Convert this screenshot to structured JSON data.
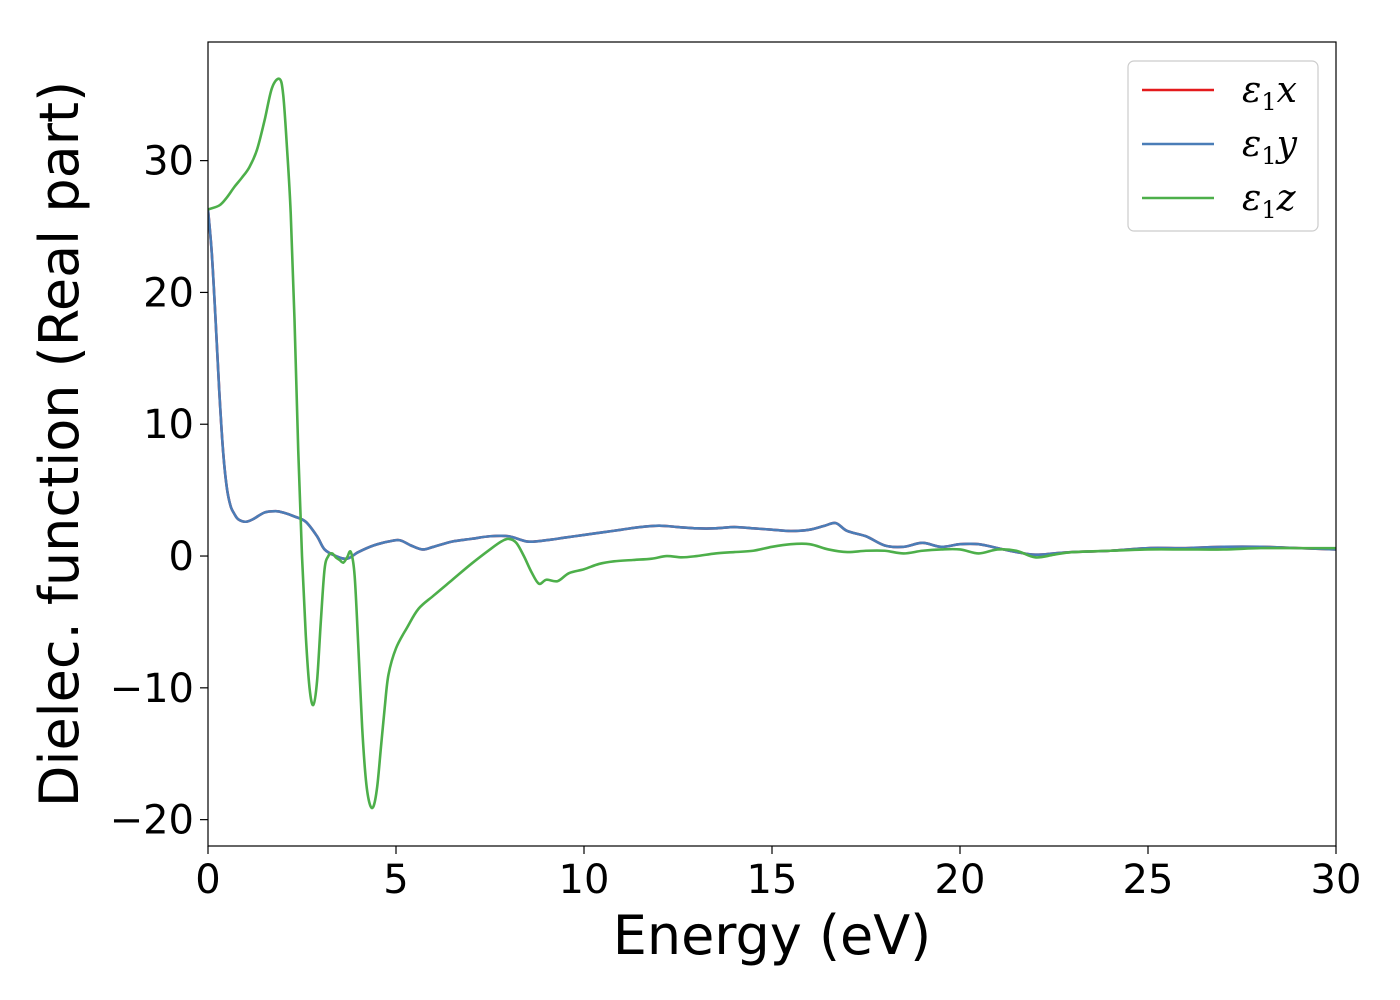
{
  "chart_data": {
    "type": "line",
    "title": "",
    "xlabel": "Energy (eV)",
    "ylabel": "Dielec. function (Real part)",
    "xlim": [
      0,
      30
    ],
    "ylim": [
      -22,
      39
    ],
    "x_ticks": [
      0,
      5,
      10,
      15,
      20,
      25,
      30
    ],
    "x_tick_labels": [
      "0",
      "5",
      "10",
      "15",
      "20",
      "25",
      "30"
    ],
    "y_ticks": [
      -20,
      -10,
      0,
      10,
      20,
      30
    ],
    "y_tick_labels": [
      "−20",
      "−10",
      "0",
      "10",
      "20",
      "30"
    ],
    "grid": false,
    "legend_position": "top-right",
    "series": [
      {
        "name": "ε₁x",
        "legend_symbol": "ε",
        "legend_sub": "1",
        "legend_var": "x",
        "color": "#e41a1c",
        "x": [
          0,
          0.1,
          0.2,
          0.3,
          0.4,
          0.5,
          0.6,
          0.7,
          0.8,
          1.0,
          1.2,
          1.5,
          1.8,
          2.0,
          2.3,
          2.6,
          2.9,
          3.1,
          3.4,
          3.7,
          4.0,
          4.4,
          4.8,
          5.1,
          5.4,
          5.7,
          6.0,
          6.5,
          7.0,
          7.5,
          8.0,
          8.5,
          9.0,
          9.5,
          10.0,
          10.5,
          11.0,
          11.5,
          12.0,
          12.5,
          13.0,
          13.5,
          14.0,
          14.5,
          15.0,
          15.5,
          16.0,
          16.4,
          16.7,
          17.0,
          17.5,
          18.0,
          18.5,
          19.0,
          19.5,
          20.0,
          20.5,
          21.0,
          21.5,
          22.0,
          22.5,
          23.0,
          24.0,
          25.0,
          26.0,
          27.0,
          28.0,
          29.0,
          30.0
        ],
        "values": [
          26.3,
          23.0,
          18.0,
          12.5,
          8.0,
          5.2,
          3.8,
          3.2,
          2.8,
          2.6,
          2.8,
          3.3,
          3.4,
          3.3,
          3.0,
          2.6,
          1.5,
          0.5,
          0.0,
          -0.2,
          0.3,
          0.8,
          1.1,
          1.2,
          0.8,
          0.5,
          0.7,
          1.1,
          1.3,
          1.5,
          1.5,
          1.1,
          1.2,
          1.4,
          1.6,
          1.8,
          2.0,
          2.2,
          2.3,
          2.2,
          2.1,
          2.1,
          2.2,
          2.1,
          2.0,
          1.9,
          2.0,
          2.3,
          2.5,
          1.9,
          1.5,
          0.8,
          0.7,
          1.0,
          0.7,
          0.9,
          0.9,
          0.6,
          0.3,
          0.1,
          0.2,
          0.3,
          0.4,
          0.6,
          0.6,
          0.7,
          0.7,
          0.6,
          0.5
        ]
      },
      {
        "name": "ε₁y",
        "legend_symbol": "ε",
        "legend_sub": "1",
        "legend_var": "y",
        "color": "#4a7db7",
        "x": [
          0,
          0.1,
          0.2,
          0.3,
          0.4,
          0.5,
          0.6,
          0.7,
          0.8,
          1.0,
          1.2,
          1.5,
          1.8,
          2.0,
          2.3,
          2.6,
          2.9,
          3.1,
          3.4,
          3.7,
          4.0,
          4.4,
          4.8,
          5.1,
          5.4,
          5.7,
          6.0,
          6.5,
          7.0,
          7.5,
          8.0,
          8.5,
          9.0,
          9.5,
          10.0,
          10.5,
          11.0,
          11.5,
          12.0,
          12.5,
          13.0,
          13.5,
          14.0,
          14.5,
          15.0,
          15.5,
          16.0,
          16.4,
          16.7,
          17.0,
          17.5,
          18.0,
          18.5,
          19.0,
          19.5,
          20.0,
          20.5,
          21.0,
          21.5,
          22.0,
          22.5,
          23.0,
          24.0,
          25.0,
          26.0,
          27.0,
          28.0,
          29.0,
          30.0
        ],
        "values": [
          26.3,
          23.0,
          18.0,
          12.5,
          8.0,
          5.2,
          3.8,
          3.2,
          2.8,
          2.6,
          2.8,
          3.3,
          3.4,
          3.3,
          3.0,
          2.6,
          1.5,
          0.5,
          0.0,
          -0.2,
          0.3,
          0.8,
          1.1,
          1.2,
          0.8,
          0.5,
          0.7,
          1.1,
          1.3,
          1.5,
          1.5,
          1.1,
          1.2,
          1.4,
          1.6,
          1.8,
          2.0,
          2.2,
          2.3,
          2.2,
          2.1,
          2.1,
          2.2,
          2.1,
          2.0,
          1.9,
          2.0,
          2.3,
          2.5,
          1.9,
          1.5,
          0.8,
          0.7,
          1.0,
          0.7,
          0.9,
          0.9,
          0.6,
          0.3,
          0.1,
          0.2,
          0.3,
          0.4,
          0.6,
          0.6,
          0.7,
          0.7,
          0.6,
          0.5
        ]
      },
      {
        "name": "ε₁z",
        "legend_symbol": "ε",
        "legend_sub": "1",
        "legend_var": "z",
        "color": "#4daf4a",
        "x": [
          0,
          0.3,
          0.5,
          0.7,
          0.9,
          1.1,
          1.3,
          1.5,
          1.7,
          1.9,
          2.0,
          2.1,
          2.2,
          2.3,
          2.4,
          2.5,
          2.6,
          2.7,
          2.8,
          2.9,
          3.0,
          3.1,
          3.2,
          3.3,
          3.4,
          3.5,
          3.6,
          3.7,
          3.8,
          3.9,
          4.0,
          4.1,
          4.2,
          4.3,
          4.4,
          4.5,
          4.6,
          4.7,
          4.8,
          5.0,
          5.3,
          5.6,
          6.0,
          6.5,
          7.0,
          7.5,
          7.8,
          8.0,
          8.2,
          8.4,
          8.6,
          8.8,
          9.0,
          9.3,
          9.6,
          10.0,
          10.4,
          10.8,
          11.3,
          11.8,
          12.2,
          12.6,
          13.0,
          13.5,
          14.0,
          14.5,
          15.0,
          15.5,
          16.0,
          16.5,
          17.0,
          17.5,
          18.0,
          18.5,
          19.0,
          19.5,
          20.0,
          20.5,
          21.0,
          21.5,
          22.0,
          22.5,
          23.0,
          24.0,
          25.0,
          26.0,
          27.0,
          28.0,
          29.0,
          30.0
        ],
        "values": [
          26.3,
          26.6,
          27.2,
          28.0,
          28.7,
          29.5,
          30.8,
          33.0,
          35.5,
          36.2,
          35.0,
          31.0,
          26.0,
          18.0,
          8.0,
          0.0,
          -6.0,
          -10.0,
          -11.3,
          -9.5,
          -5.0,
          -1.0,
          0.0,
          0.2,
          -0.1,
          -0.3,
          -0.5,
          -0.1,
          0.3,
          -1.5,
          -7.0,
          -13.0,
          -17.0,
          -18.8,
          -19.0,
          -17.5,
          -14.5,
          -11.5,
          -9.0,
          -7.0,
          -5.4,
          -4.0,
          -3.0,
          -1.8,
          -0.6,
          0.5,
          1.1,
          1.3,
          1.0,
          0.0,
          -1.2,
          -2.1,
          -1.8,
          -1.9,
          -1.3,
          -1.0,
          -0.6,
          -0.4,
          -0.3,
          -0.2,
          0.0,
          -0.1,
          0.0,
          0.2,
          0.3,
          0.4,
          0.7,
          0.9,
          0.9,
          0.5,
          0.3,
          0.4,
          0.4,
          0.2,
          0.4,
          0.5,
          0.5,
          0.2,
          0.5,
          0.4,
          -0.1,
          0.1,
          0.3,
          0.4,
          0.5,
          0.5,
          0.5,
          0.6,
          0.6,
          0.6
        ]
      }
    ]
  }
}
